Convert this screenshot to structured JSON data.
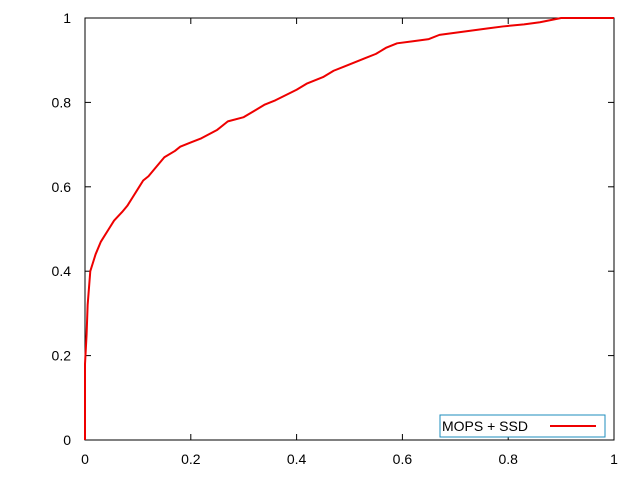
{
  "chart_data": {
    "type": "line",
    "title": "",
    "xlabel": "",
    "ylabel": "",
    "xlim": [
      0,
      1
    ],
    "ylim": [
      0,
      1
    ],
    "grid": false,
    "legend_position": "bottom-right",
    "x_ticks": [
      "0",
      "0.2",
      "0.4",
      "0.6",
      "0.8",
      "1"
    ],
    "y_ticks": [
      "0",
      "0.2",
      "0.4",
      "0.6",
      "0.8",
      "1"
    ],
    "series": [
      {
        "name": "MOPS + SSD",
        "color": "#ee0000",
        "points": [
          [
            0.0,
            0.0
          ],
          [
            0.0,
            0.18
          ],
          [
            0.003,
            0.25
          ],
          [
            0.005,
            0.32
          ],
          [
            0.01,
            0.4
          ],
          [
            0.015,
            0.42
          ],
          [
            0.02,
            0.44
          ],
          [
            0.03,
            0.47
          ],
          [
            0.035,
            0.48
          ],
          [
            0.045,
            0.5
          ],
          [
            0.055,
            0.52
          ],
          [
            0.07,
            0.54
          ],
          [
            0.08,
            0.555
          ],
          [
            0.09,
            0.575
          ],
          [
            0.1,
            0.595
          ],
          [
            0.11,
            0.615
          ],
          [
            0.12,
            0.625
          ],
          [
            0.13,
            0.64
          ],
          [
            0.15,
            0.67
          ],
          [
            0.17,
            0.685
          ],
          [
            0.18,
            0.695
          ],
          [
            0.2,
            0.705
          ],
          [
            0.22,
            0.715
          ],
          [
            0.25,
            0.735
          ],
          [
            0.27,
            0.755
          ],
          [
            0.3,
            0.765
          ],
          [
            0.32,
            0.78
          ],
          [
            0.34,
            0.795
          ],
          [
            0.36,
            0.805
          ],
          [
            0.4,
            0.83
          ],
          [
            0.42,
            0.845
          ],
          [
            0.44,
            0.855
          ],
          [
            0.45,
            0.86
          ],
          [
            0.47,
            0.875
          ],
          [
            0.49,
            0.885
          ],
          [
            0.51,
            0.895
          ],
          [
            0.53,
            0.905
          ],
          [
            0.55,
            0.915
          ],
          [
            0.57,
            0.93
          ],
          [
            0.59,
            0.94
          ],
          [
            0.62,
            0.945
          ],
          [
            0.65,
            0.95
          ],
          [
            0.67,
            0.96
          ],
          [
            0.7,
            0.965
          ],
          [
            0.73,
            0.97
          ],
          [
            0.76,
            0.975
          ],
          [
            0.79,
            0.98
          ],
          [
            0.83,
            0.985
          ],
          [
            0.86,
            0.99
          ],
          [
            0.88,
            0.995
          ],
          [
            0.9,
            1.0
          ],
          [
            1.0,
            1.0
          ]
        ]
      }
    ]
  }
}
